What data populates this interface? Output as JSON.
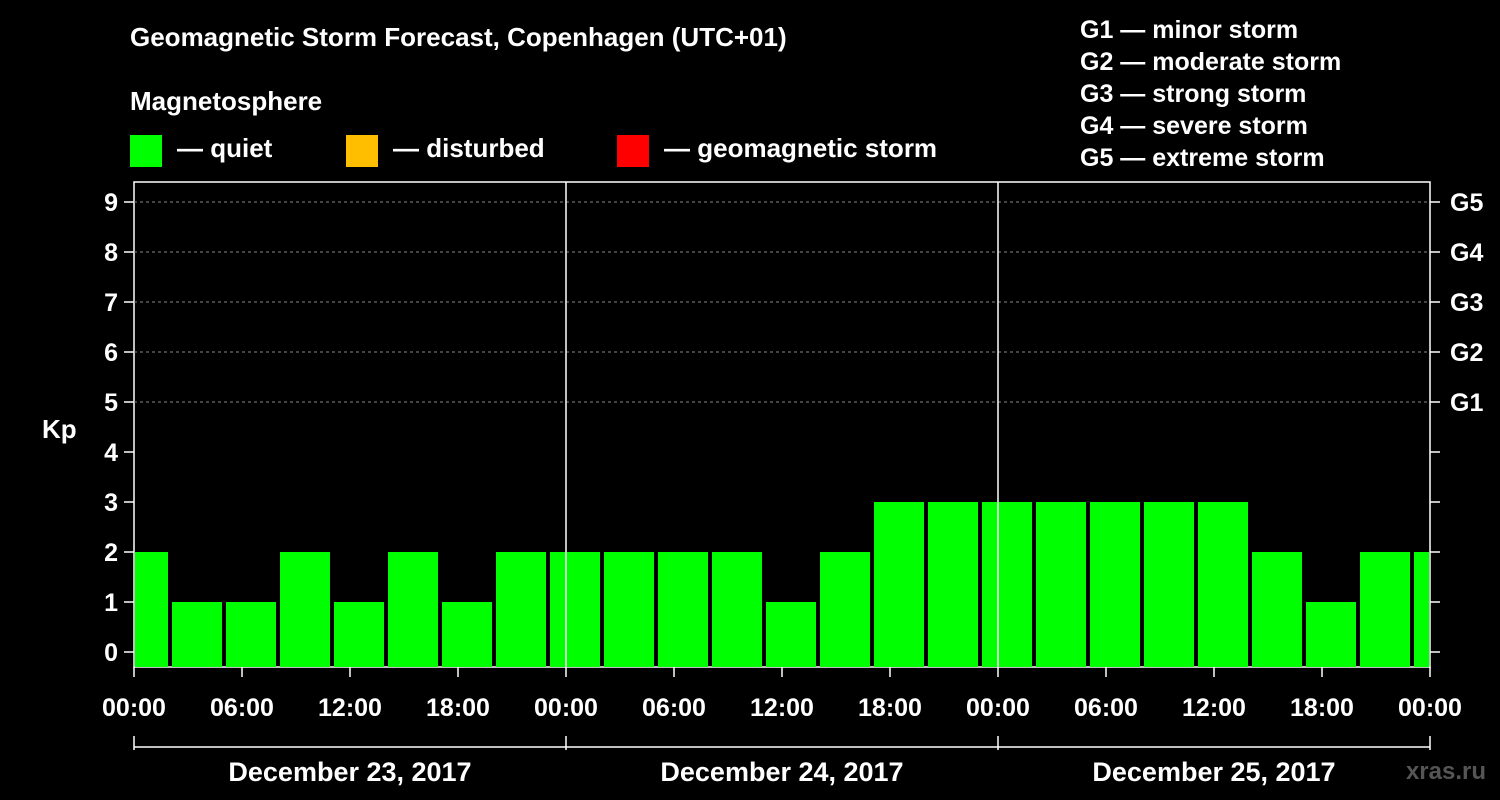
{
  "title": "Geomagnetic Storm Forecast, Copenhagen (UTC+01)",
  "legend": {
    "heading": "Magnetosphere",
    "items": [
      {
        "label": "— quiet",
        "color": "#00ff00"
      },
      {
        "label": "— disturbed",
        "color": "#ffbf00"
      },
      {
        "label": "— geomagnetic storm",
        "color": "#ff0000"
      }
    ]
  },
  "storm_scale": [
    "G1 — minor storm",
    "G2 — moderate storm",
    "G3 — strong storm",
    "G4 — severe storm",
    "G5 — extreme storm"
  ],
  "watermark": "xras.ru",
  "chart_data": {
    "type": "bar",
    "ylabel": "Kp",
    "ylim": [
      0,
      9
    ],
    "yticks": [
      "0",
      "1",
      "2",
      "3",
      "4",
      "5",
      "6",
      "7",
      "8",
      "9"
    ],
    "right_ticks": [
      {
        "value": 5,
        "label": "G1"
      },
      {
        "value": 6,
        "label": "G2"
      },
      {
        "value": 7,
        "label": "G3"
      },
      {
        "value": 8,
        "label": "G4"
      },
      {
        "value": 9,
        "label": "G5"
      }
    ],
    "xticks": [
      "00:00",
      "06:00",
      "12:00",
      "18:00",
      "00:00",
      "06:00",
      "12:00",
      "18:00",
      "00:00",
      "06:00",
      "12:00",
      "18:00",
      "00:00"
    ],
    "days": [
      "December 23, 2017",
      "December 24, 2017",
      "December 25, 2017"
    ],
    "grid": "dashed at Kp 5 to 9",
    "bar_period_hours": 3,
    "values": [
      2,
      1,
      1,
      2,
      1,
      2,
      1,
      2,
      2,
      2,
      2,
      2,
      1,
      2,
      3,
      3,
      3,
      3,
      3,
      3,
      3,
      2,
      1,
      2,
      2
    ],
    "colors": {
      "quiet": "#00ff00",
      "disturbed": "#ffbf00",
      "storm": "#ff0000"
    }
  }
}
